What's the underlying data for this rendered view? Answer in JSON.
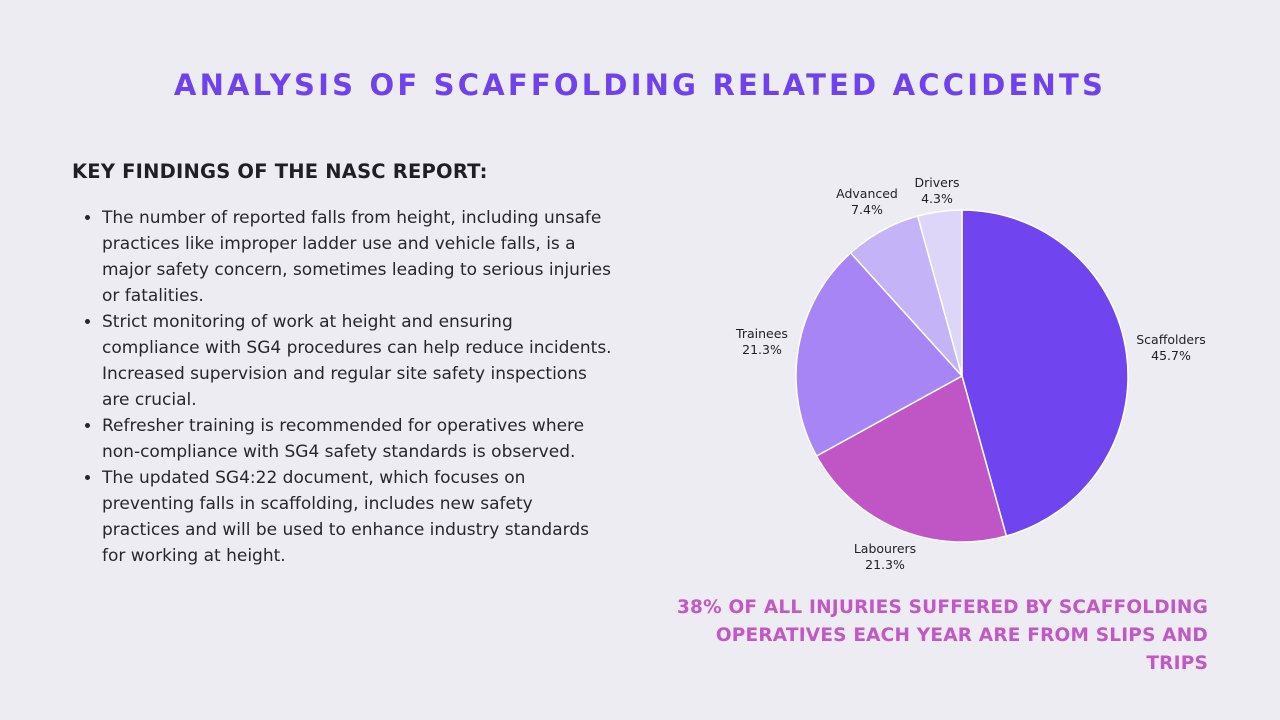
{
  "title": "ANALYSIS OF SCAFFOLDING RELATED ACCIDENTS",
  "findings": {
    "heading": "KEY FINDINGS OF THE NASC REPORT:",
    "bullets": [
      "The number of reported falls from height, including unsafe practices like improper ladder use and vehicle falls, is a major safety concern, sometimes leading to serious injuries or fatalities.",
      "Strict monitoring of work at height and ensuring compliance with SG4 procedures can help reduce incidents. Increased supervision and regular site safety inspections are crucial.",
      "Refresher training is recommended for operatives where non-compliance with SG4 safety standards is observed.",
      "The updated SG4:22 document, which focuses on preventing falls in scaffolding, includes new safety practices and will be used to enhance industry standards for working at height."
    ]
  },
  "chart_data": {
    "type": "pie",
    "title": "",
    "categories": [
      "Scaffolders",
      "Labourers",
      "Trainees",
      "Advanced",
      "Drivers"
    ],
    "values": [
      45.7,
      21.3,
      21.3,
      7.4,
      4.3
    ],
    "value_labels": [
      "45.7%",
      "21.3%",
      "21.3%",
      "7.4%",
      "4.3%"
    ],
    "colors": [
      "#7045f0",
      "#c056c6",
      "#a885f5",
      "#c4b4f7",
      "#ddd6f9"
    ],
    "start": "12 o'clock, clockwise"
  },
  "callout": {
    "line1": "38% OF ALL INJURIES SUFFERED BY SCAFFOLDING",
    "line2": "OPERATIVES EACH YEAR ARE FROM SLIPS AND TRIPS"
  }
}
